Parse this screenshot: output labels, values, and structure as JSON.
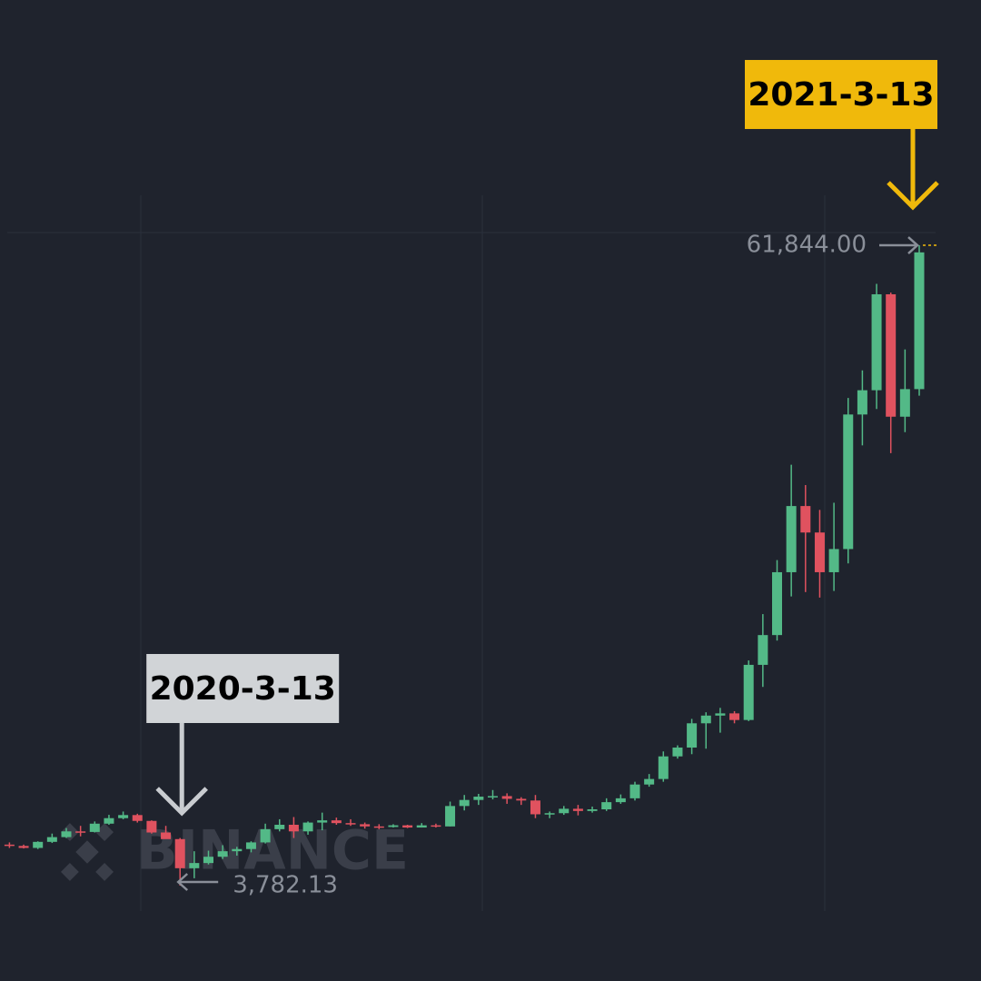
{
  "chart_data": {
    "type": "candlestick",
    "watermark": "BINANCE",
    "up_color": "#53b987",
    "down_color": "#e0525f",
    "ylim": [
      -4866,
      84083
    ],
    "open": [
      7500,
      7380,
      7200,
      7750,
      8180,
      8700,
      8650,
      9400,
      9900,
      10180,
      9650,
      8600,
      8000,
      5360,
      5830,
      6400,
      6900,
      7100,
      7700,
      8900,
      9300,
      8700,
      9500,
      9700,
      9450,
      9350,
      9150,
      9100,
      9250,
      9050,
      9250,
      9150,
      11000,
      11550,
      11850,
      11900,
      11650,
      11500,
      10250,
      10350,
      10750,
      10550,
      10700,
      11350,
      11700,
      12950,
      13450,
      15500,
      16300,
      18500,
      19200,
      19400,
      18800,
      23800,
      26500,
      32200,
      38200,
      35800,
      32200,
      34300,
      46500,
      48700,
      57400,
      46300,
      48800
    ],
    "high": [
      7700,
      7500,
      7800,
      8500,
      9000,
      9200,
      9600,
      10200,
      10500,
      10300,
      9700,
      9200,
      8100,
      6900,
      6950,
      7450,
      7300,
      7800,
      9400,
      9800,
      10000,
      9600,
      10400,
      9950,
      9800,
      9500,
      9350,
      9350,
      9300,
      9450,
      9400,
      11400,
      12000,
      12100,
      12450,
      12150,
      11800,
      12000,
      10500,
      11000,
      11100,
      10950,
      11700,
      12050,
      13200,
      13900,
      15950,
      16500,
      18900,
      19500,
      19900,
      19600,
      24200,
      28400,
      33300,
      41950,
      40100,
      37850,
      38500,
      48000,
      50500,
      58350,
      57550,
      52400,
      61844
    ],
    "low": [
      7200,
      7150,
      7100,
      7650,
      8100,
      8250,
      8600,
      9300,
      9800,
      9500,
      8500,
      8100,
      3782.13,
      4450,
      5700,
      6200,
      6500,
      6800,
      7600,
      8700,
      8100,
      8400,
      8800,
      9300,
      9200,
      8950,
      8900,
      9050,
      9000,
      9050,
      9050,
      9150,
      10600,
      11100,
      11600,
      11200,
      11100,
      9900,
      9900,
      10200,
      10150,
      10400,
      10550,
      11200,
      11500,
      12750,
      13200,
      15300,
      15700,
      16200,
      17650,
      18500,
      18700,
      21800,
      26000,
      30000,
      30400,
      29900,
      30500,
      33000,
      43700,
      47000,
      43000,
      44900,
      48200
    ],
    "close": [
      7380,
      7200,
      7750,
      8180,
      8700,
      8650,
      9400,
      9900,
      10180,
      9650,
      8600,
      8000,
      5360,
      5830,
      6400,
      6900,
      7100,
      7700,
      8900,
      9300,
      8700,
      9500,
      9700,
      9450,
      9350,
      9150,
      9100,
      9250,
      9050,
      9250,
      9150,
      11000,
      11550,
      11850,
      11900,
      11650,
      11500,
      10250,
      10350,
      10750,
      10550,
      10700,
      11350,
      11700,
      12950,
      13450,
      15500,
      16300,
      18500,
      19200,
      19400,
      18800,
      23800,
      26500,
      32200,
      38200,
      35800,
      32200,
      34300,
      46500,
      48700,
      57400,
      46300,
      48800,
      61200
    ],
    "annotations": [
      {
        "label": "2020-3-13",
        "price": 3782.13,
        "price_label": "3,782.13",
        "color": "#d1d4d7"
      },
      {
        "label": "2021-3-13",
        "price": 61844,
        "price_label": "61,844.00",
        "color": "#f0b90b"
      }
    ]
  }
}
